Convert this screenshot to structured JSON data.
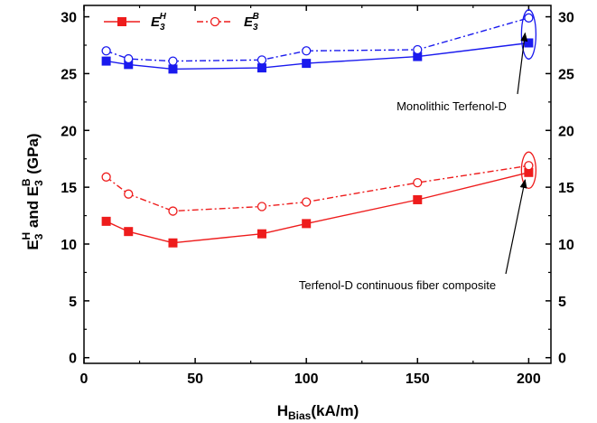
{
  "chart_data": {
    "type": "line",
    "xlabel": {
      "main": "H",
      "sub": "Bias",
      "unit": "(kA/m)"
    },
    "ylabel": {
      "part1": "E",
      "sub1": "3",
      "sup1": "H",
      "mid": " and ",
      "part2": "E",
      "sub2": "3",
      "sup2": "B",
      "unit": " (GPa)"
    },
    "xlim": [
      0,
      210
    ],
    "ylim": [
      -0.5,
      31
    ],
    "xticks": [
      0,
      50,
      100,
      150,
      200
    ],
    "yticks": [
      0,
      5,
      10,
      15,
      20,
      25,
      30
    ],
    "x": [
      10,
      20,
      40,
      80,
      100,
      150,
      200
    ],
    "series": [
      {
        "name_main": "E",
        "name_sub": "3",
        "name_sup": "H",
        "group": "monolithic",
        "style": "solid",
        "marker": "filled-square",
        "color": "#1a1aee",
        "values": [
          26.1,
          25.8,
          25.4,
          25.5,
          25.9,
          26.5,
          27.7
        ]
      },
      {
        "name_main": "E",
        "name_sub": "3",
        "name_sup": "B",
        "group": "monolithic",
        "style": "dash-dot",
        "marker": "open-circle",
        "color": "#1a1aee",
        "values": [
          27.0,
          26.3,
          26.1,
          26.2,
          27.0,
          27.1,
          29.9
        ]
      },
      {
        "name_main": "E",
        "name_sub": "3",
        "name_sup": "H",
        "group": "composite",
        "style": "solid",
        "marker": "filled-square",
        "color": "#ee1c1c",
        "values": [
          12.0,
          11.1,
          10.1,
          10.9,
          11.8,
          13.9,
          16.3
        ]
      },
      {
        "name_main": "E",
        "name_sub": "3",
        "name_sup": "B",
        "group": "composite",
        "style": "dash-dot",
        "marker": "open-circle",
        "color": "#ee1c1c",
        "values": [
          15.9,
          14.4,
          12.9,
          13.3,
          13.7,
          15.4,
          16.9
        ]
      }
    ],
    "legend": {
      "position": "top-left"
    },
    "annotations": [
      {
        "text": "Monolithic Terfenol-D",
        "target_x": 200,
        "target_y": 28.8
      },
      {
        "text": "Terfenol-D continuous fiber composite",
        "target_x": 200,
        "target_y": 16.6
      }
    ],
    "grid": false
  }
}
